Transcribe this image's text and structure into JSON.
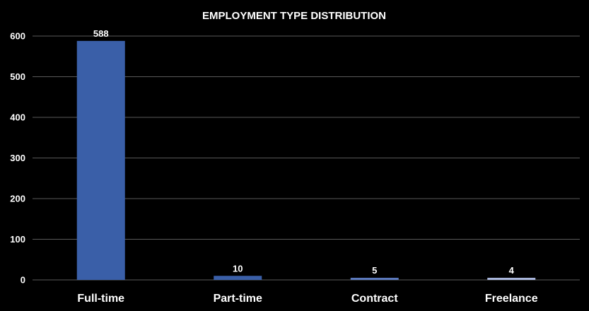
{
  "chart_data": {
    "type": "bar",
    "title": "EMPLOYMENT TYPE DISTRIBUTION",
    "xlabel": "",
    "ylabel": "",
    "categories": [
      "Full-time",
      "Part-time",
      "Contract",
      "Freelance"
    ],
    "values": [
      588,
      10,
      5,
      4
    ],
    "data_labels": [
      "588",
      "10",
      "5",
      "4"
    ],
    "ylim": [
      0,
      600
    ],
    "yticks": [
      0,
      100,
      200,
      300,
      400,
      500,
      600
    ],
    "grid": true,
    "legend": "none",
    "colors": {
      "background": "#000000",
      "bar_fills": [
        "#3a5fa8",
        "#3a5fa8",
        "#5b79bd",
        "#a9b6dc"
      ],
      "gridline": "#5a5a5a",
      "text": "#ffffff"
    }
  }
}
